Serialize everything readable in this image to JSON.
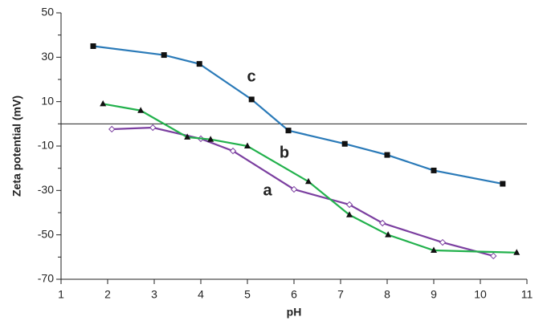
{
  "chart_data": {
    "type": "line",
    "x_label": "pH",
    "y_label": "Zeta potential (mV)",
    "xlim": [
      1,
      11
    ],
    "xticks": [
      1,
      2,
      3,
      4,
      5,
      6,
      7,
      8,
      9,
      10,
      11
    ],
    "ylim": [
      -70,
      50
    ],
    "yticks": [
      -70,
      -50,
      -30,
      -10,
      10,
      30,
      50
    ],
    "yminor_ticks": [
      -60,
      -40,
      -20,
      0,
      20,
      40
    ],
    "series": [
      {
        "name": "a",
        "color": "#7b3fa0",
        "marker": "diamond",
        "x": [
          2.09,
          2.97,
          4.0,
          4.69,
          6.0,
          7.19,
          7.9,
          9.19,
          10.28
        ],
        "values": [
          -2.4,
          -1.7,
          -6.7,
          -12.2,
          -29.5,
          -36.4,
          -44.7,
          -53.4,
          -59.5
        ]
      },
      {
        "name": "b",
        "color": "#22b14c",
        "marker": "triangle",
        "x": [
          1.9,
          2.71,
          3.71,
          4.21,
          5.0,
          6.31,
          7.19,
          8.02,
          9.0,
          10.78
        ],
        "values": [
          9,
          6,
          -6,
          -7,
          -10,
          -26,
          -41,
          -50,
          -57,
          -58
        ]
      },
      {
        "name": "c",
        "color": "#2a7ab8",
        "marker": "square",
        "x": [
          1.69,
          3.21,
          3.97,
          5.09,
          5.88,
          7.09,
          8.0,
          9.0,
          10.48
        ],
        "values": [
          35,
          31,
          27,
          11,
          -3,
          -9,
          -14,
          -21,
          -27
        ]
      }
    ]
  }
}
